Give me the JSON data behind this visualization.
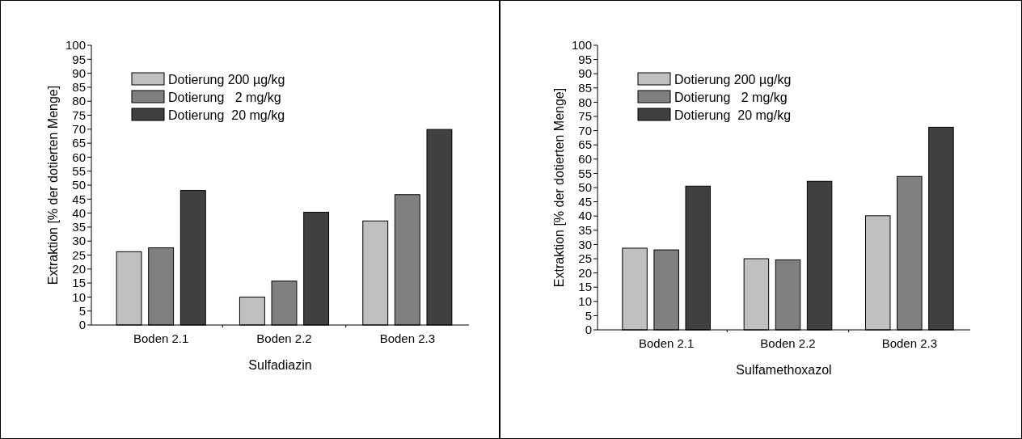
{
  "chart_data": [
    {
      "type": "bar",
      "xlabel": "Sulfadiazin",
      "ylabel": "Extraktion [% der dotierten Menge]",
      "categories": [
        "Boden 2.1",
        "Boden 2.2",
        "Boden 2.3"
      ],
      "series": [
        {
          "name": "Dotierung 200 µg/kg",
          "color": "#c0c0c0",
          "values": [
            26.2,
            10.0,
            37.2
          ]
        },
        {
          "name": "Dotierung   2 mg/kg",
          "color": "#808080",
          "values": [
            27.6,
            15.7,
            46.6
          ]
        },
        {
          "name": "Dotierung  20 mg/kg",
          "color": "#404040",
          "values": [
            48.1,
            40.3,
            69.9
          ]
        }
      ],
      "ylim": [
        0,
        100
      ],
      "yticks": [
        0,
        5,
        10,
        15,
        20,
        25,
        30,
        35,
        40,
        45,
        50,
        55,
        60,
        65,
        70,
        75,
        80,
        85,
        90,
        95,
        100
      ],
      "legend": "top left",
      "grid": false
    },
    {
      "type": "bar",
      "xlabel": "Sulfamethoxazol",
      "ylabel": "Extraktion [% der dotierten Menge]",
      "categories": [
        "Boden 2.1",
        "Boden 2.2",
        "Boden 2.3"
      ],
      "series": [
        {
          "name": "Dotierung 200 µg/kg",
          "color": "#c0c0c0",
          "values": [
            28.7,
            25.0,
            40.1
          ]
        },
        {
          "name": "Dotierung   2 mg/kg",
          "color": "#808080",
          "values": [
            28.1,
            24.6,
            53.9
          ]
        },
        {
          "name": "Dotierung  20 mg/kg",
          "color": "#404040",
          "values": [
            50.5,
            52.2,
            71.2
          ]
        }
      ],
      "ylim": [
        0,
        100
      ],
      "yticks": [
        0,
        5,
        10,
        15,
        20,
        25,
        30,
        35,
        40,
        45,
        50,
        55,
        60,
        65,
        70,
        75,
        80,
        85,
        90,
        95,
        100
      ],
      "legend": "top left",
      "grid": false
    }
  ]
}
